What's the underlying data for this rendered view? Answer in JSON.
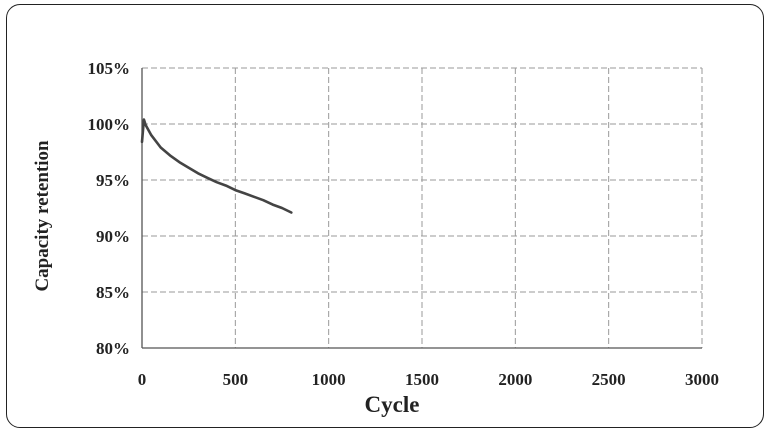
{
  "chart_data": {
    "type": "line",
    "title": "",
    "xlabel": "Cycle",
    "ylabel": "Capacity retention",
    "xlim": [
      0,
      3000
    ],
    "ylim": [
      80,
      105
    ],
    "x_ticks": [
      "0",
      "500",
      "1000",
      "1500",
      "2000",
      "2500",
      "3000"
    ],
    "y_ticks": [
      "80%",
      "85%",
      "90%",
      "95%",
      "100%",
      "105%"
    ],
    "grid": "dashed vertical and horizontal",
    "series": [
      {
        "x": [
          0,
          10,
          20,
          50,
          100,
          150,
          200,
          250,
          300,
          350,
          400,
          450,
          500,
          550,
          600,
          650,
          700,
          750,
          800
        ],
        "values": [
          98.4,
          100.4,
          99.9,
          99.0,
          97.9,
          97.2,
          96.6,
          96.1,
          95.6,
          95.2,
          94.8,
          94.5,
          94.1,
          93.8,
          93.5,
          93.2,
          92.8,
          92.5,
          92.1
        ]
      }
    ],
    "colors": {
      "line": "#444444",
      "grid": "#9a9a9a",
      "axis": "#555555",
      "text": "#222222"
    }
  }
}
